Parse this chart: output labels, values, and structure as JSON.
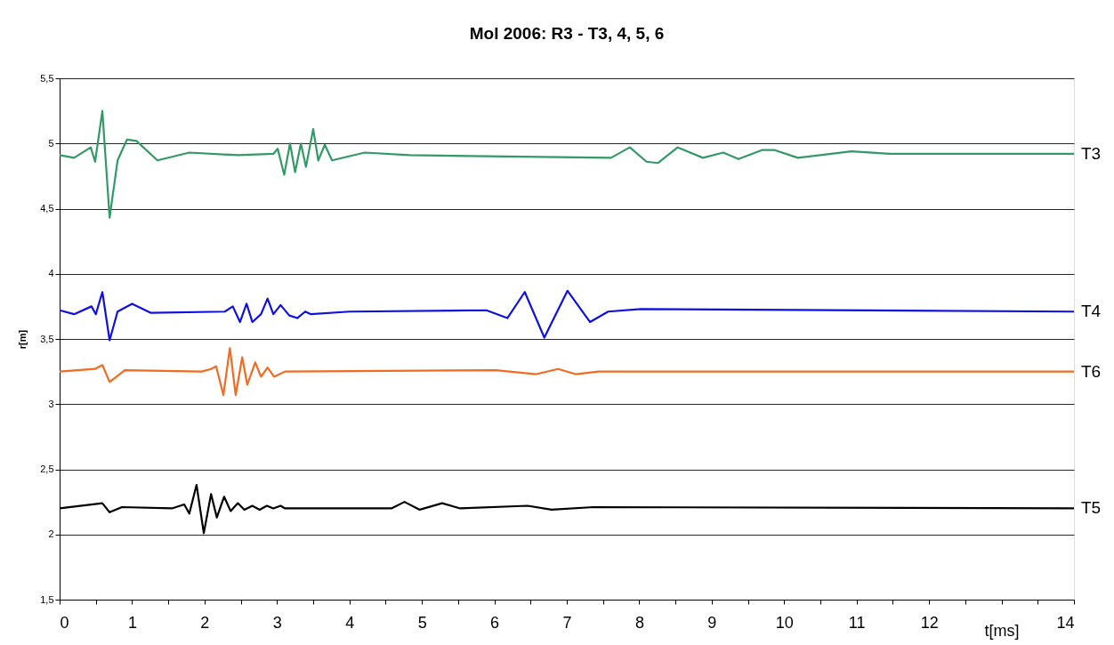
{
  "chart_data": {
    "type": "line",
    "title": "Mol 2006: R3 - T3, 4, 5, 6",
    "xlabel": "t[ms]",
    "ylabel": "r[m]",
    "xlim": [
      0,
      14
    ],
    "ylim": [
      1.5,
      5.5
    ],
    "xticks": [
      0,
      {
        "value": 0.5,
        "label": null
      },
      1,
      {
        "value": 1.5,
        "label": null
      },
      2,
      {
        "value": 2.5,
        "label": null
      },
      3,
      {
        "value": 3.5,
        "label": null
      },
      4,
      {
        "value": 4.5,
        "label": null
      },
      5,
      {
        "value": 5.5,
        "label": null
      },
      6,
      {
        "value": 6.5,
        "label": null
      },
      7,
      {
        "value": 7.5,
        "label": null
      },
      8,
      {
        "value": 8.5,
        "label": null
      },
      9,
      {
        "value": 9.5,
        "label": null
      },
      10,
      {
        "value": 10.5,
        "label": null
      },
      11,
      {
        "value": 11.5,
        "label": null
      },
      12,
      {
        "value": 12.5,
        "label": null
      },
      {
        "value": 13,
        "label": null
      },
      {
        "value": 13.5,
        "label": null
      },
      14
    ],
    "yticks": [
      {
        "value": 1.5,
        "label": "1,5"
      },
      2,
      {
        "value": 2.5,
        "label": "2,5"
      },
      3,
      {
        "value": 3.5,
        "label": "3,5"
      },
      4,
      {
        "value": 4.5,
        "label": "4,5"
      },
      5,
      {
        "value": 5.5,
        "label": "5,5"
      }
    ],
    "grid": "y",
    "line_style": "solid",
    "marker": "none",
    "series": [
      {
        "name": "T3",
        "color": "#339966",
        "x": [
          0,
          0.2,
          0.43,
          0.49,
          0.59,
          0.69,
          0.8,
          0.93,
          1.06,
          1.35,
          1.79,
          2.46,
          2.95,
          3.01,
          3.1,
          3.18,
          3.25,
          3.33,
          3.4,
          3.5,
          3.57,
          3.66,
          3.76,
          4.21,
          4.83,
          7.61,
          7.87,
          8.1,
          8.26,
          8.53,
          8.88,
          9.16,
          9.37,
          9.7,
          9.86,
          10.19,
          10.93,
          11.46,
          14
        ],
        "values": [
          4.91,
          4.89,
          4.97,
          4.86,
          5.25,
          4.43,
          4.87,
          5.03,
          5.02,
          4.87,
          4.93,
          4.91,
          4.92,
          4.96,
          4.76,
          5.0,
          4.78,
          5.0,
          4.82,
          5.11,
          4.87,
          4.99,
          4.87,
          4.93,
          4.91,
          4.89,
          4.97,
          4.86,
          4.85,
          4.97,
          4.89,
          4.93,
          4.88,
          4.95,
          4.95,
          4.89,
          4.94,
          4.92,
          4.92
        ]
      },
      {
        "name": "T4",
        "color": "#1010e0",
        "x": [
          0,
          0.2,
          0.44,
          0.5,
          0.59,
          0.69,
          0.8,
          1.0,
          1.26,
          2.28,
          2.39,
          2.49,
          2.58,
          2.66,
          2.78,
          2.87,
          2.95,
          3.05,
          3.17,
          3.28,
          3.39,
          3.47,
          4.0,
          5.89,
          6.18,
          6.42,
          6.69,
          7.01,
          7.32,
          7.57,
          8.02,
          14
        ],
        "values": [
          3.72,
          3.69,
          3.75,
          3.69,
          3.86,
          3.49,
          3.71,
          3.77,
          3.7,
          3.71,
          3.75,
          3.63,
          3.77,
          3.63,
          3.69,
          3.81,
          3.69,
          3.76,
          3.68,
          3.66,
          3.71,
          3.69,
          3.71,
          3.72,
          3.66,
          3.86,
          3.51,
          3.87,
          3.63,
          3.71,
          3.73,
          3.71
        ]
      },
      {
        "name": "T6",
        "color": "#f26b21",
        "x": [
          0,
          0.49,
          0.59,
          0.69,
          0.9,
          1.96,
          2.09,
          2.16,
          2.26,
          2.35,
          2.43,
          2.52,
          2.59,
          2.7,
          2.78,
          2.87,
          2.96,
          3.11,
          6.02,
          6.58,
          6.88,
          7.12,
          7.44,
          14
        ],
        "values": [
          3.25,
          3.27,
          3.3,
          3.17,
          3.26,
          3.25,
          3.27,
          3.29,
          3.07,
          3.43,
          3.07,
          3.36,
          3.15,
          3.32,
          3.21,
          3.28,
          3.21,
          3.25,
          3.26,
          3.23,
          3.27,
          3.23,
          3.25,
          3.25
        ]
      },
      {
        "name": "T5",
        "color": "#000000",
        "x": [
          0,
          0.59,
          0.69,
          0.86,
          1.55,
          1.72,
          1.79,
          1.89,
          1.99,
          2.09,
          2.17,
          2.27,
          2.36,
          2.46,
          2.55,
          2.66,
          2.76,
          2.86,
          2.95,
          3.05,
          3.11,
          4.58,
          4.76,
          4.97,
          5.28,
          5.53,
          6.46,
          6.79,
          7.37,
          14
        ],
        "values": [
          2.2,
          2.24,
          2.17,
          2.21,
          2.2,
          2.23,
          2.16,
          2.38,
          2.01,
          2.31,
          2.13,
          2.29,
          2.18,
          2.24,
          2.19,
          2.22,
          2.19,
          2.22,
          2.2,
          2.22,
          2.2,
          2.2,
          2.25,
          2.19,
          2.24,
          2.2,
          2.22,
          2.19,
          2.21,
          2.2
        ]
      }
    ]
  }
}
